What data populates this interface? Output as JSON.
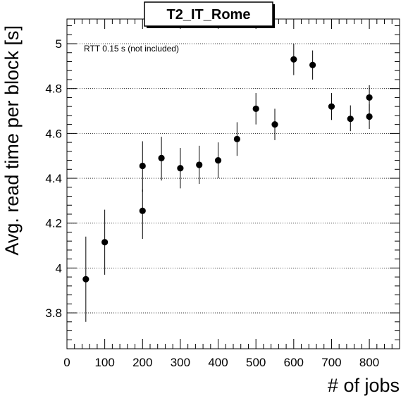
{
  "chart_data": {
    "type": "scatter",
    "title": "T2_IT_Rome",
    "xlabel": "# of jobs",
    "ylabel": "Avg. read time per block [s]",
    "annotation": "RTT 0.15 s (not included)",
    "xlim": [
      0,
      880
    ],
    "ylim": [
      3.64,
      5.11
    ],
    "xticks": [
      0,
      100,
      200,
      300,
      400,
      500,
      600,
      700,
      800
    ],
    "yticks": [
      3.8,
      4,
      4.2,
      4.4,
      4.6,
      4.8,
      5
    ],
    "ytick_labels": [
      "3.8",
      "4",
      "4.2",
      "4.4",
      "4.6",
      "4.8",
      "5"
    ],
    "grid": "horizontal-dotted",
    "legend": "none",
    "series": [
      {
        "marker": "filled-circle",
        "color": "#000000",
        "points": [
          {
            "x": 50,
            "y": 3.95,
            "err_low": 3.76,
            "err_high": 4.14
          },
          {
            "x": 100,
            "y": 4.115,
            "err_low": 3.97,
            "err_high": 4.26
          },
          {
            "x": 200,
            "y": 4.255,
            "err_low": 4.13,
            "err_high": 4.35
          },
          {
            "x": 200,
            "y": 4.455,
            "err_low": 4.34,
            "err_high": 4.565
          },
          {
            "x": 250,
            "y": 4.49,
            "err_low": 4.39,
            "err_high": 4.585
          },
          {
            "x": 300,
            "y": 4.445,
            "err_low": 4.355,
            "err_high": 4.535
          },
          {
            "x": 350,
            "y": 4.46,
            "err_low": 4.375,
            "err_high": 4.545
          },
          {
            "x": 400,
            "y": 4.48,
            "err_low": 4.4,
            "err_high": 4.56
          },
          {
            "x": 450,
            "y": 4.575,
            "err_low": 4.5,
            "err_high": 4.65
          },
          {
            "x": 500,
            "y": 4.71,
            "err_low": 4.64,
            "err_high": 4.78
          },
          {
            "x": 550,
            "y": 4.64,
            "err_low": 4.57,
            "err_high": 4.71
          },
          {
            "x": 600,
            "y": 4.93,
            "err_low": 4.86,
            "err_high": 5.0
          },
          {
            "x": 650,
            "y": 4.905,
            "err_low": 4.84,
            "err_high": 4.97
          },
          {
            "x": 700,
            "y": 4.72,
            "err_low": 4.66,
            "err_high": 4.78
          },
          {
            "x": 750,
            "y": 4.665,
            "err_low": 4.61,
            "err_high": 4.725
          },
          {
            "x": 800,
            "y": 4.76,
            "err_low": 4.7,
            "err_high": 4.815
          },
          {
            "x": 800,
            "y": 4.675,
            "err_low": 4.62,
            "err_high": 4.73
          }
        ]
      }
    ]
  }
}
